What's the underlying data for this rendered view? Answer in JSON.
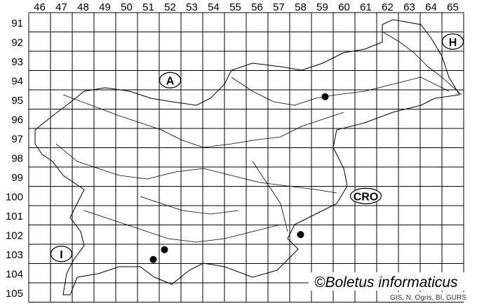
{
  "grid": {
    "columns": [
      "46",
      "47",
      "48",
      "49",
      "50",
      "51",
      "52",
      "53",
      "54",
      "55",
      "56",
      "57",
      "58",
      "59",
      "60",
      "61",
      "62",
      "63",
      "64",
      "65"
    ],
    "rows": [
      "91",
      "92",
      "93",
      "94",
      "95",
      "96",
      "97",
      "98",
      "99",
      "100",
      "101",
      "102",
      "103",
      "104",
      "105"
    ]
  },
  "country_labels": [
    {
      "text": "A",
      "col": "52",
      "row": "94"
    },
    {
      "text": "H",
      "col": "65",
      "row": "92"
    },
    {
      "text": "CRO",
      "col": "61",
      "row": "100"
    },
    {
      "text": "I",
      "col": "47",
      "row": "103"
    }
  ],
  "records": [
    {
      "col": "59",
      "row": "95"
    },
    {
      "col": "58",
      "row": "102"
    },
    {
      "col": "52",
      "row": "103"
    },
    {
      "col": "52",
      "row": "103"
    }
  ],
  "copyright": "©Boletus informaticus",
  "credits": "GIS, N. Ogris, BI, GURS"
}
